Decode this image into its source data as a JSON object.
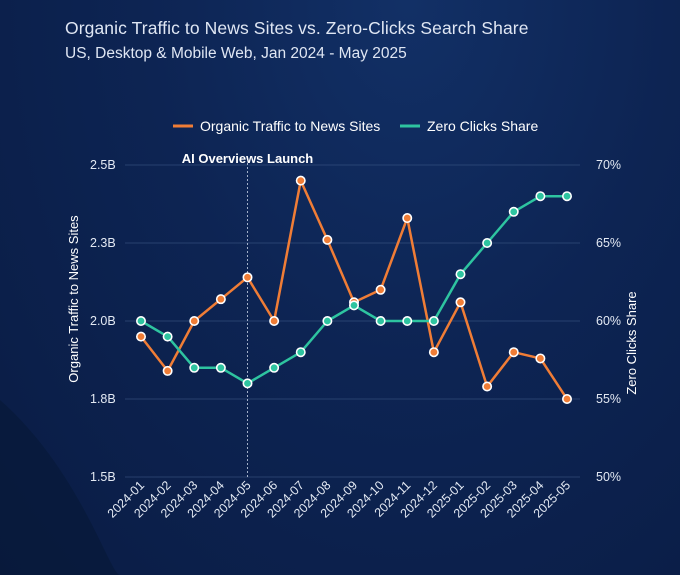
{
  "chart_data": {
    "type": "line",
    "title": "Organic Traffic to News Sites vs. Zero-Clicks Search Share",
    "subtitle": "US, Desktop & Mobile Web, Jan 2024 - May 2025",
    "categories": [
      "2024-01",
      "2024-02",
      "2024-03",
      "2024-04",
      "2024-05",
      "2024-06",
      "2024-07",
      "2024-08",
      "2024-09",
      "2024-10",
      "2024-11",
      "2024-12",
      "2025-01",
      "2025-02",
      "2025-03",
      "2025-04",
      "2025-05"
    ],
    "series": [
      {
        "name": "Organic Traffic to News Sites",
        "axis": "left",
        "color": "#f07d36",
        "values": [
          1.95,
          1.84,
          2.0,
          2.07,
          2.14,
          2.0,
          2.45,
          2.26,
          2.06,
          2.1,
          2.33,
          1.9,
          2.06,
          1.79,
          1.9,
          1.88,
          1.75
        ]
      },
      {
        "name": "Zero Clicks Share",
        "axis": "right",
        "color": "#2ec4a0",
        "values": [
          60,
          59,
          57,
          57,
          56,
          57,
          58,
          60,
          61,
          60,
          60,
          60,
          63,
          65,
          67,
          68,
          68
        ]
      }
    ],
    "ylabel": "Organic Traffic to News Sites",
    "y2label": "Zero Clicks Share",
    "ylim": [
      1.5,
      2.5
    ],
    "y2lim": [
      50,
      70
    ],
    "yticks": [
      "1.5B",
      "1.8B",
      "2.0B",
      "2.3B",
      "2.5B"
    ],
    "y2ticks": [
      "50%",
      "55%",
      "60%",
      "65%",
      "70%"
    ],
    "grid": true,
    "legend_position": "top-center",
    "annotation": {
      "label": "AI Overviews Launch",
      "x": "2024-05"
    }
  }
}
